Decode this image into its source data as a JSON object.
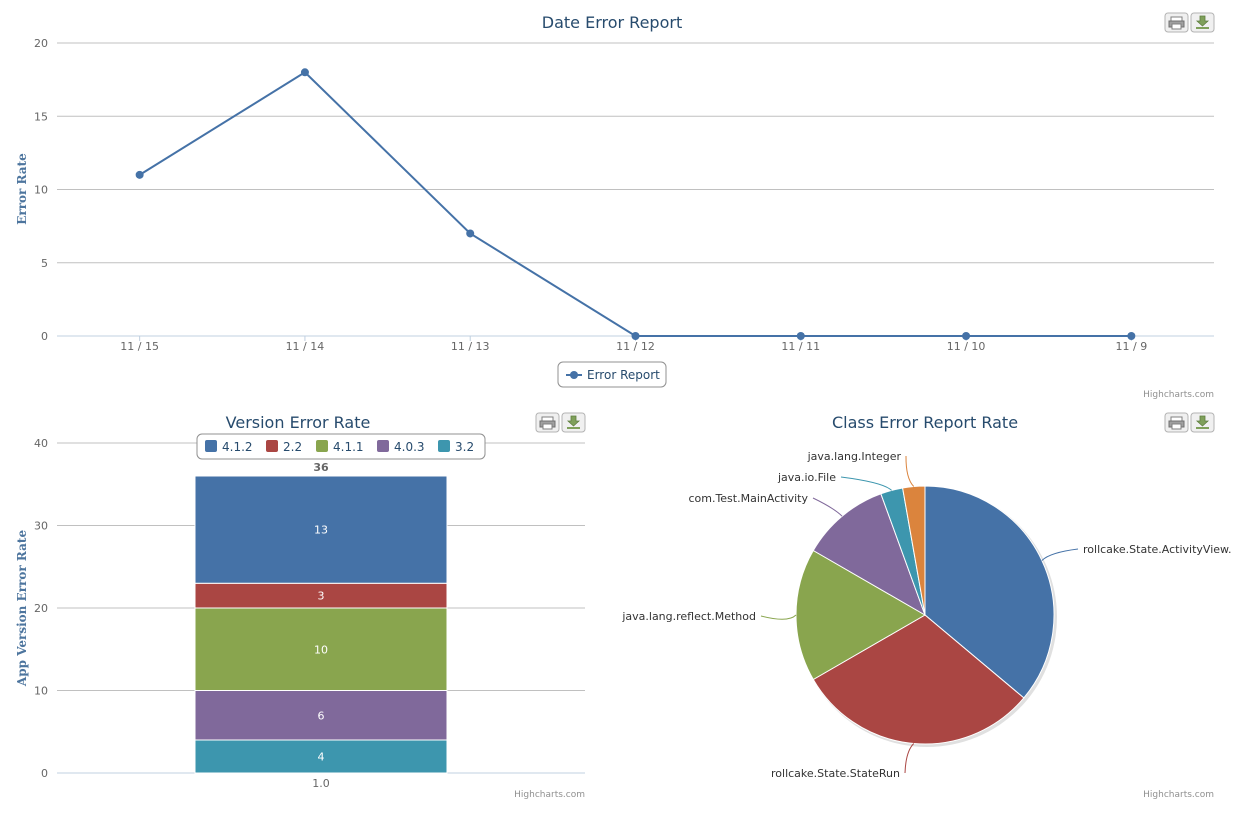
{
  "credit": "Highcharts.com",
  "icons": {
    "print": "printer-icon",
    "export": "download-icon"
  },
  "line_chart": {
    "chart_data": {
      "type": "line",
      "title": "Date Error Report",
      "xlabel": "",
      "ylabel": "Error Rate",
      "categories": [
        "11 / 15",
        "11 / 14",
        "11 / 13",
        "11 / 12",
        "11 / 11",
        "11 / 10",
        "11 / 9"
      ],
      "ylim": [
        0,
        20
      ],
      "yticks": [
        0,
        5,
        10,
        15,
        20
      ],
      "series": [
        {
          "name": "Error Report",
          "values": [
            11,
            18,
            7,
            0,
            0,
            0,
            0
          ],
          "color": "#4572a7"
        }
      ],
      "legend": "bottom-center",
      "grid": true
    }
  },
  "stack_chart": {
    "chart_data": {
      "type": "bar",
      "stacked": true,
      "title": "Version Error Rate",
      "xlabel": "",
      "ylabel": "App Version Error Rate",
      "categories": [
        "1.0"
      ],
      "ylim": [
        0,
        40
      ],
      "yticks": [
        0,
        10,
        20,
        30,
        40
      ],
      "series": [
        {
          "name": "4.1.2",
          "values": [
            13
          ],
          "color": "#4572a7"
        },
        {
          "name": "2.2",
          "values": [
            3
          ],
          "color": "#aa4643"
        },
        {
          "name": "4.1.1",
          "values": [
            10
          ],
          "color": "#89a54e"
        },
        {
          "name": "4.0.3",
          "values": [
            6
          ],
          "color": "#80699b"
        },
        {
          "name": "3.2",
          "values": [
            4
          ],
          "color": "#3d96ae"
        }
      ],
      "total": 36,
      "legend": "top-center",
      "grid": true
    }
  },
  "pie_chart": {
    "chart_data": {
      "type": "pie",
      "title": "Class Error Report Rate",
      "slices": [
        {
          "label": "rollcake.State.ActivityView.",
          "value": 13,
          "color": "#4572a7"
        },
        {
          "label": "rollcake.State.StateRun",
          "value": 11,
          "color": "#aa4643"
        },
        {
          "label": "java.lang.reflect.Method",
          "value": 6,
          "color": "#89a54e"
        },
        {
          "label": "com.Test.MainActivity",
          "value": 4,
          "color": "#80699b"
        },
        {
          "label": "java.io.File",
          "value": 1,
          "color": "#3d96ae"
        },
        {
          "label": "java.lang.Integer",
          "value": 1,
          "color": "#db843d"
        }
      ]
    }
  }
}
